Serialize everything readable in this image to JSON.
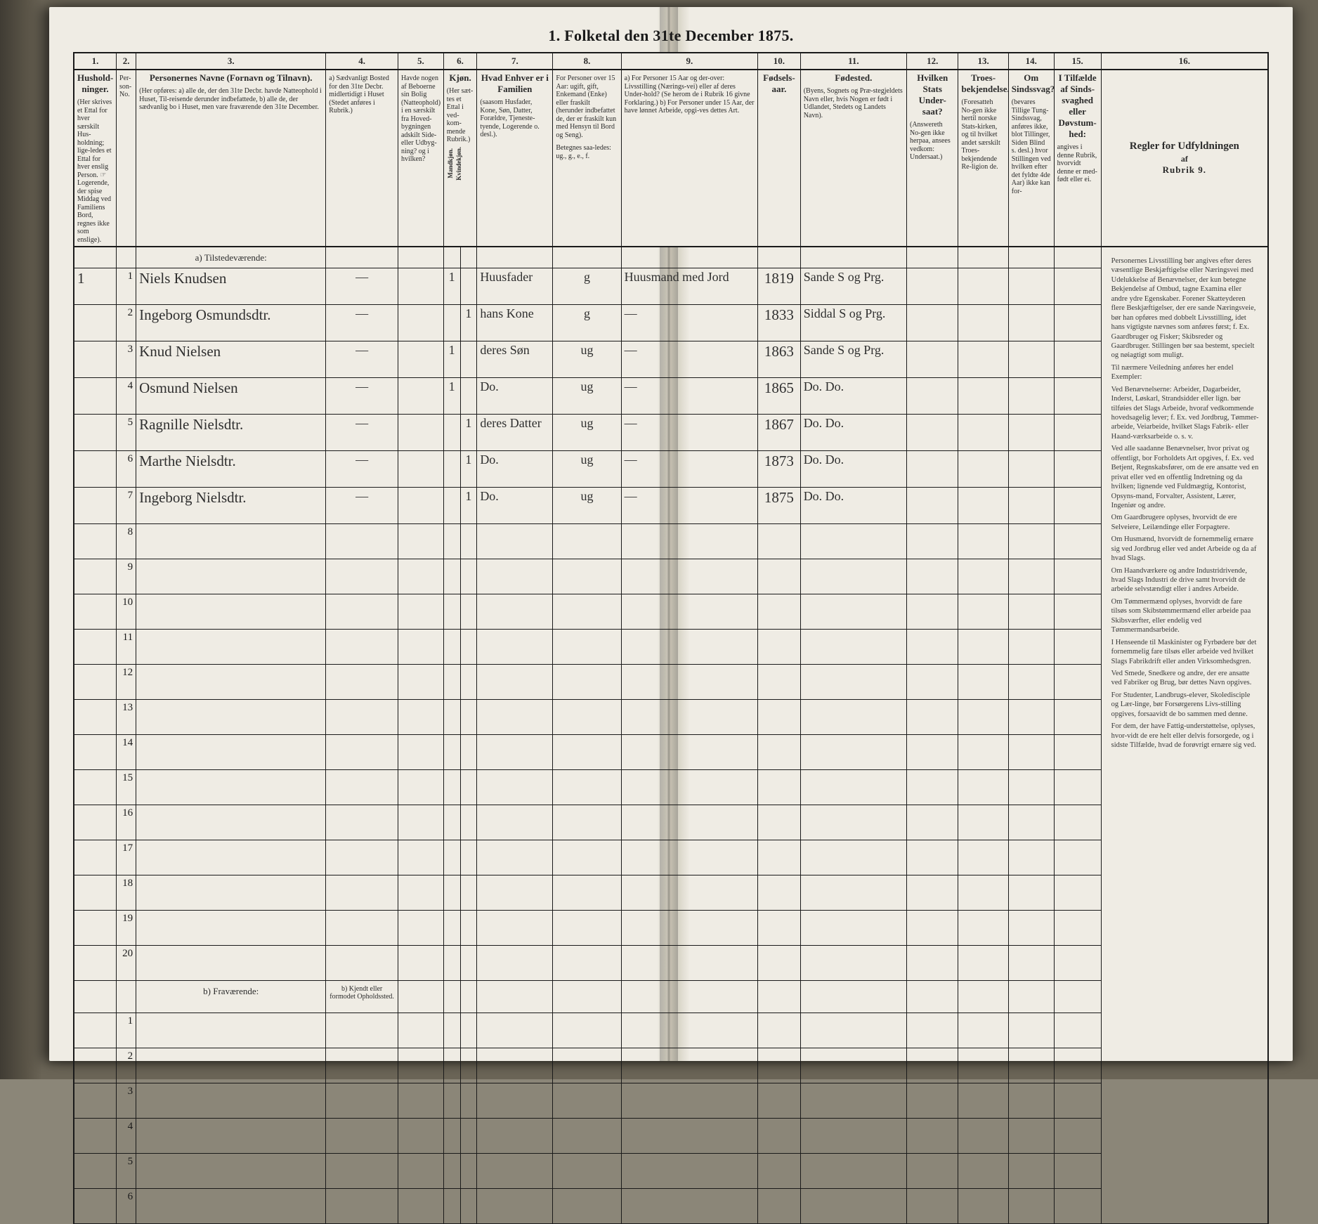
{
  "page": {
    "title": "1.  Folketal den 31te December 1875.",
    "background": "#efece4",
    "ink": "#2b2b2b",
    "rule": "#1a1a1a",
    "hand_ink": "#2f2f2f"
  },
  "columns": {
    "numbers": [
      "1.",
      "2.",
      "3.",
      "4.",
      "5.",
      "6.",
      "7.",
      "8.",
      "9.",
      "10.",
      "11.",
      "12.",
      "13.",
      "14.",
      "15.",
      "16."
    ],
    "c1": {
      "title": "Hushold-\nninger.",
      "note": "(Her skrives et Ettal for hver særskilt Hus-holdning; lige-ledes et Ettal for hver enslig Person.\n☞ Logerende, der spise Middag ved Familiens Bord, regnes ikke som enslige)."
    },
    "c2": {
      "title": "",
      "note": "Per-son-No."
    },
    "c3": {
      "title": "Personernes Navne (Fornavn og Tilnavn).",
      "note": "(Her opføres:\na) alle de, der den 31te Decbr. havde Natteophold i Huset, Til-reisende derunder indbefattede,\nb) alle de, der sædvanlig bo i Huset, men vare fraværende den 31te December."
    },
    "c4": {
      "title": "a) Sædvanligt Bosted for den 31te Decbr. midlertidigt i Huset (Stedet anføres i Rubrik.)",
      "note": ""
    },
    "c5": {
      "title": "Havde nogen af Beboerne sin Bolig (Natteophold) i en særskilt fra Hoved-bygningen adskilt Side- eller Udbyg-ning? og i hvilken?",
      "note": ""
    },
    "c6": {
      "title": "Kjøn.",
      "a": "Mandkjøn.",
      "b": "Kvindekjøn.",
      "note": "(Her sæt-tes et Ettal i ved-kom-mende Rubrik.)"
    },
    "c7": {
      "title": "Hvad Enhver er i Familien",
      "note": "(saasom Husfader, Kone, Søn, Datter, Forældre, Tjeneste-tyende, Logerende o. desl.)."
    },
    "c8": {
      "title": "For Personer over 15 Aar: ugift, gift, Enkemand (Enke) eller fraskilt (herunder indbefattet de, der er fraskilt kun med Hensyn til Bord og Seng).",
      "note": "Betegnes saa-ledes: ug., g., e., f."
    },
    "c9": {
      "title": "a) For Personer 15 Aar og der-over: Livsstilling (Nærings-vei) eller af deres Under-hold? (Se herom de i Rubrik 16 givne Forklaring.)\nb) For Personer under 15 Aar, der have lønnet Arbeide, opgi-ves dettes Art.",
      "note": ""
    },
    "c10": {
      "title": "Fødsels-aar.",
      "note": ""
    },
    "c11": {
      "title": "Fødested.",
      "note": "(Byens, Sognets og Præ-stegjeldets Navn eller, hvis Nogen er født i Udlandet, Stedets og Landets Navn)."
    },
    "c12": {
      "title": "Hvilken Stats Under-saat?",
      "note": "(Answereth No-gen ikke herpaa, ansees vedkom: Undersaat.)"
    },
    "c13": {
      "title": "Troes-bekjendelse.",
      "note": "(Foresatteh No-gen ikke hertil norske Stats-kirken, og til hvilket andet særskilt Troes-bekjendende Re-ligion de."
    },
    "c14": {
      "title": "Om Sindssvag?",
      "note": "(bevares Tillige Tung-Sindssvag, anføres ikke, blot Tillinger, Siden Blind s. desl.) hvor Stillingen ved hvilken efter det fyldte 4de Aar) ikke kan for-"
    },
    "c15": {
      "title": "I Tilfælde af Sinds-svaghed eller Døvstum-hed:",
      "note": "angives i denne Rubrik, hvorvidt denne er med-født eller ei."
    },
    "c16": {
      "title": "Regler for Udfyldningen",
      "sub": "af",
      "sub2": "Rubrik 9."
    }
  },
  "sections": {
    "present": "a)  Tilstedeværende:",
    "absent": "b)      Fraværende:",
    "absent_col4": "b) Kjendt eller formodet Opholdssted."
  },
  "rows_present": [
    {
      "no": "1",
      "hh": "1",
      "name": "Niels Knudsen",
      "c4": "—",
      "c5": "",
      "sex": "m",
      "rel": "Huusfader",
      "civ": "g",
      "occ": "Huusmand med Jord",
      "year": "1819",
      "place": "Sande S og Prg."
    },
    {
      "no": "2",
      "hh": "",
      "name": "Ingeborg Osmundsdtr.",
      "c4": "—",
      "c5": "",
      "sex": "k",
      "rel": "hans Kone",
      "civ": "g",
      "occ": "—",
      "year": "1833",
      "place": "Siddal S og Prg."
    },
    {
      "no": "3",
      "hh": "",
      "name": "Knud Nielsen",
      "c4": "—",
      "c5": "",
      "sex": "m",
      "rel": "deres Søn",
      "civ": "ug",
      "occ": "—",
      "year": "1863",
      "place": "Sande S og Prg."
    },
    {
      "no": "4",
      "hh": "",
      "name": "Osmund Nielsen",
      "c4": "—",
      "c5": "",
      "sex": "m",
      "rel": "Do.",
      "civ": "ug",
      "occ": "—",
      "year": "1865",
      "place": "Do.   Do."
    },
    {
      "no": "5",
      "hh": "",
      "name": "Ragnille Nielsdtr.",
      "c4": "—",
      "c5": "",
      "sex": "k",
      "rel": "deres Datter",
      "civ": "ug",
      "occ": "—",
      "year": "1867",
      "place": "Do.   Do."
    },
    {
      "no": "6",
      "hh": "",
      "name": "Marthe Nielsdtr.",
      "c4": "—",
      "c5": "",
      "sex": "k",
      "rel": "Do.",
      "civ": "ug",
      "occ": "—",
      "year": "1873",
      "place": "Do.   Do."
    },
    {
      "no": "7",
      "hh": "",
      "name": "Ingeborg Nielsdtr.",
      "c4": "—",
      "c5": "",
      "sex": "k",
      "rel": "Do.",
      "civ": "ug",
      "occ": "—",
      "year": "1875",
      "place": "Do.   Do."
    }
  ],
  "blank_present_rows": [
    "8",
    "9",
    "10",
    "11",
    "12",
    "13",
    "14",
    "15",
    "16",
    "17",
    "18",
    "19",
    "20"
  ],
  "blank_absent_rows": [
    "1",
    "2",
    "3",
    "4",
    "5",
    "6"
  ],
  "rules_text": {
    "title": "Regler for Udfyldningen",
    "sub": "af",
    "sub2": "Rubrik 9.",
    "paras": [
      "Personernes Livsstilling bør angives efter deres væsentlige Beskjæftigelse eller Næringsvei med Udelukkelse af Benævnelser, der kun betegne Bekjendelse af Ombud, tagne Examina eller andre ydre Egenskaber. Forener Skatteyderen flere Beskjæftigelser, der ere sande Næringsveie, bør han opføres med dobbelt Livsstilling, idet hans vigtigste nævnes som anføres først; f. Ex. Gaardbruger og Fisker; Skibsreder og Gaardbruger. Stillingen bør saa bestemt, specielt og nøiagtigt som muligt.",
      "Til nærmere Veiledning anføres her endel Exempler:",
      "Ved Benævnelserne: Arbeider, Dagarbeider, Inderst, Løskarl, Strandsidder eller lign. bør tilføies det Slags Arbeide, hvoraf vedkommende hovedsagelig lever; f. Ex. ved Jordbrug, Tømmer-arbeide, Veiarbeide, hvilket Slags Fabrik- eller Haand-værksarbeide o. s. v.",
      "Ved alle saadanne Benævnelser, hvor privat og offentligt, bor Forholdets Art opgives, f. Ex. ved Betjent, Regnskabsfører, om de ere ansatte ved en privat eller ved en offentlig Indretning og da hvilken; lignende ved Fuldmægtig, Kontorist, Opsyns-mand, Forvalter, Assistent, Lærer, Ingeniør og andre.",
      "Om Gaardbrugere oplyses, hvorvidt de ere Selveiere, Leilændinge eller Forpagtere.",
      "Om Husmænd, hvorvidt de fornemmelig ernære sig ved Jordbrug eller ved andet Arbeide og da af hvad Slags.",
      "Om Haandværkere og andre Industridrivende, hvad Slags Industri de drive samt hvorvidt de arbeide selvstændigt eller i andres Arbeide.",
      "Om Tømmermænd oplyses, hvorvidt de fare tilsøs som Skibstømmermænd eller arbeide paa Skibsværfter, eller endelig ved Tømmermandsarbeide.",
      "I Henseende til Maskinister og Fyrbødere bør det fornemmelig fare tilsøs eller arbeide ved hvilket Slags Fabrikdrift eller anden Virksomhedsgren.",
      "Ved Smede, Snedkere og andre, der ere ansatte ved Fabriker og Brug, bør dettes Navn opgives.",
      "For Studenter, Landbrugs-elever, Skoledisciple og Lær-linge, bør Forsørgerens Livs-stilling opgives, forsaavidt de bo sammen med denne.",
      "For dem, der have Fattig-understøttelse, oplyses, hvor-vidt de ere helt eller delvis forsorgede, og i sidste Tilfælde, hvad de forøvrigt ernære sig ved."
    ]
  }
}
